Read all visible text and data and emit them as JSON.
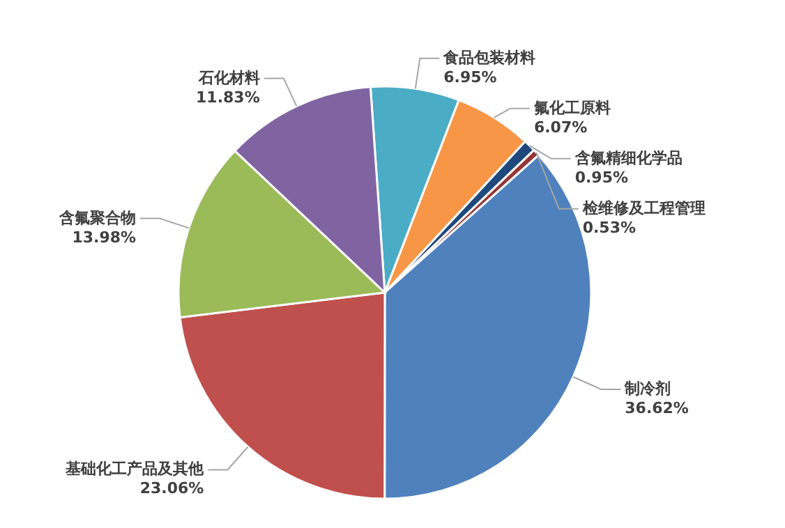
{
  "chart_data": {
    "type": "pie",
    "categories": [
      "食品包装材料",
      "氟化工原料",
      "含氟精细化学品",
      "检维修及工程管理",
      "制冷剂",
      "基础化工产品及其他",
      "含氟聚合物",
      "石化材料"
    ],
    "values": [
      6.95,
      6.07,
      0.95,
      0.53,
      36.62,
      23.06,
      13.98,
      11.83
    ],
    "value_labels": [
      "6.95%",
      "6.07%",
      "0.95%",
      "0.53%",
      "36.62%",
      "23.06%",
      "13.98%",
      "11.83%"
    ],
    "colors": [
      "#4bacc6",
      "#f79646",
      "#1f497d",
      "#953735",
      "#4f81bd",
      "#c0504d",
      "#9bbb59",
      "#8064a2"
    ]
  }
}
